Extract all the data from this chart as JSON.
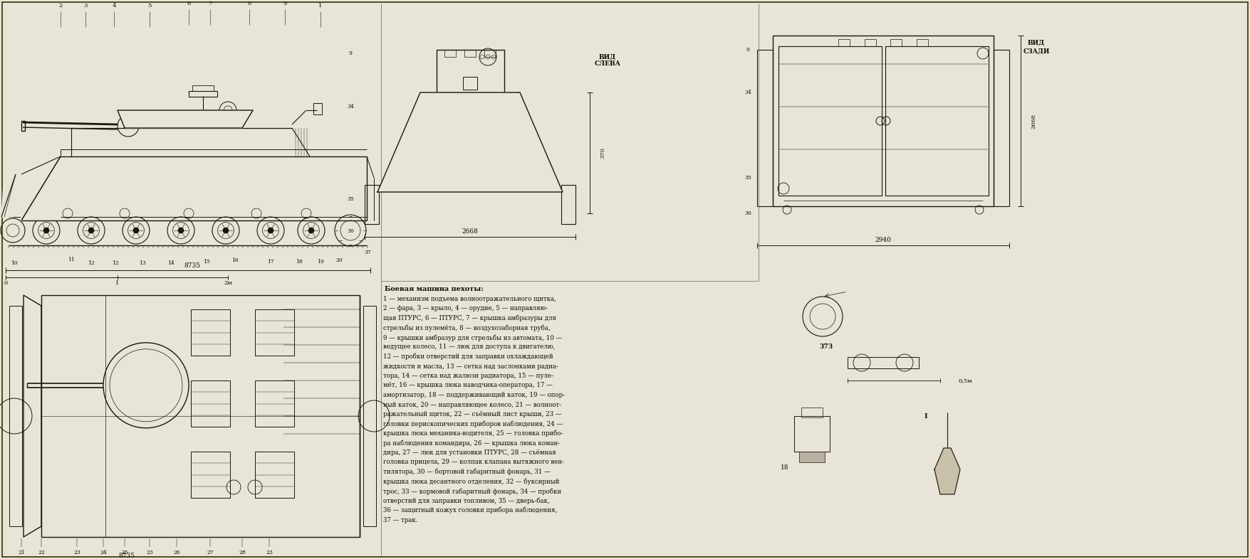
{
  "paper_color": "#e8e4d8",
  "line_color": "#1a1608",
  "text_color": "#0d0d00",
  "figure_width": 17.55,
  "figure_height": 7.86,
  "dpi": 100,
  "main_title_text": "Боевая машина пехоты:",
  "description_lines": [
    "1 — механизм подъема волноотражательного щитка,",
    "2 — фара, 3 — крыло, 4 — орудие, 5 — направляю-",
    "щая ПТУРС, 6 — ПТУРС, 7 — крышка амбразуры для",
    "стрельбы из пулемёта, 8 — воздухозаборная труба,",
    "9 — крышки амбразур для стрельбы из автомата, 10 —",
    "ведущее колесо, 11 — люк для доступа к двигателю,",
    "12 — пробки отверстий для заправки охлаждающей",
    "жидкости и масла, 13 — сетка над заслонками радиа-",
    "тора, 14 — сетка над жалюзи радиатора, 15 — пуле-",
    "мёт, 16 — крышка люка наводчика-оператора, 17 —",
    "амортизатор, 18 — поддерживающий каток, 19 — опор-",
    "ный каток, 20 — направляющее колесо, 21 — волноот-",
    "ражательный щиток, 22 — съёмный лист крыши, 23 —",
    "головки перископических приборов наблюдения, 24 —",
    "крышка люка механика-водителя, 25 — головка прибо-",
    "ра наблюдения командира, 26 — крышка люка коман-",
    "дира, 27 — люк для установки ПТУРС, 28 — съёмная",
    "головка прицела, 29 — колпак клапана вытяжного вен-",
    "тилятора, 30 — бортовой габаритный фонарь, 31 —",
    "крышка люка десантного отделения, 32 — буксирный",
    "трос, 33 — кормовой габаритный фонарь, 34 — пробки",
    "отверстий для заправки топливом, 35 — дверь-бак,",
    "36 — защитный кожух головки прибора наблюдения,",
    "37 — трак."
  ],
  "scale_bar_text": "8735",
  "scale_labels": [
    "0",
    "1",
    "2м"
  ],
  "front_view_dims": [
    "2668",
    "370"
  ],
  "rear_view_dims": [
    "2940"
  ],
  "front_labels": [
    "ВИД",
    "СЛЕВА"
  ],
  "rear_labels": [
    "ВИД",
    "СЗАДИ"
  ],
  "small_circle_label": "37З",
  "small_label_I": "I",
  "small_label_18": "18",
  "dim_05m": "0,5м"
}
